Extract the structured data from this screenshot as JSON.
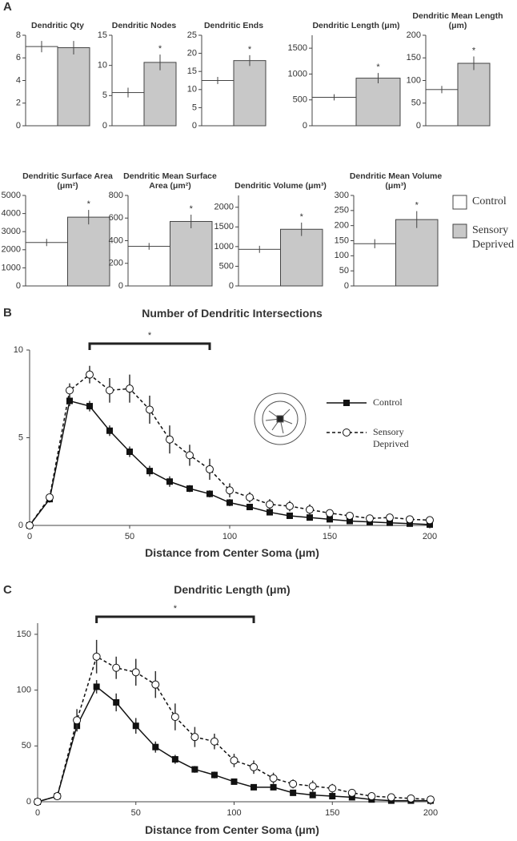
{
  "panel_labels": [
    "A",
    "B",
    "C"
  ],
  "panel_a_legend": [
    {
      "name": "Control",
      "color": "#ffffff"
    },
    {
      "name": "Sensory Deprived",
      "color": "#c8c8c8"
    }
  ],
  "chart_data": [
    {
      "type": "bar",
      "title": "Dendritic Qty",
      "values": [
        7.0,
        6.9
      ],
      "errors": [
        0.5,
        0.6
      ],
      "colors": [
        "#ffffff",
        "#c8c8c8"
      ],
      "ylim": [
        0,
        8
      ],
      "yticks": [
        0,
        2,
        4,
        6,
        8
      ]
    },
    {
      "type": "bar",
      "title": "Dendritic Nodes",
      "values": [
        5.5,
        10.5
      ],
      "errors": [
        0.8,
        1.3
      ],
      "colors": [
        "#ffffff",
        "#c8c8c8"
      ],
      "ylim": [
        0,
        15
      ],
      "yticks": [
        0,
        5,
        10,
        15
      ],
      "annotation": "*"
    },
    {
      "type": "bar",
      "title": "Dendritic Ends",
      "values": [
        12.5,
        18
      ],
      "errors": [
        1,
        1.5
      ],
      "colors": [
        "#ffffff",
        "#c8c8c8"
      ],
      "ylim": [
        0,
        25
      ],
      "yticks": [
        0,
        5,
        10,
        15,
        20,
        25
      ],
      "annotation": "*"
    },
    {
      "type": "bar",
      "title": "Dendritic Length (μm)",
      "values": [
        550,
        920
      ],
      "errors": [
        60,
        100
      ],
      "colors": [
        "#ffffff",
        "#c8c8c8"
      ],
      "ylim": [
        0,
        1750
      ],
      "yticks": [
        0,
        500,
        1000,
        1500
      ],
      "annotation": "*"
    },
    {
      "type": "bar",
      "title": "Dendritic Mean Length (μm)",
      "values": [
        80,
        138
      ],
      "errors": [
        8,
        15
      ],
      "colors": [
        "#ffffff",
        "#c8c8c8"
      ],
      "ylim": [
        0,
        200
      ],
      "yticks": [
        0,
        50,
        100,
        150,
        200
      ],
      "annotation": "*"
    },
    {
      "type": "bar",
      "title": "Dendritic Surface Area (μm²)",
      "values": [
        2400,
        3800
      ],
      "errors": [
        200,
        400
      ],
      "colors": [
        "#ffffff",
        "#c8c8c8"
      ],
      "ylim": [
        0,
        5000
      ],
      "yticks": [
        0,
        1000,
        2000,
        3000,
        4000,
        5000
      ],
      "annotation": "*"
    },
    {
      "type": "bar",
      "title": "Dendritic Mean Surface Area (μm²)",
      "values": [
        350,
        570
      ],
      "errors": [
        30,
        60
      ],
      "colors": [
        "#ffffff",
        "#c8c8c8"
      ],
      "ylim": [
        0,
        800
      ],
      "yticks": [
        0,
        200,
        400,
        600,
        800
      ],
      "annotation": "*"
    },
    {
      "type": "bar",
      "title": "Dendritic Volume (μm³)",
      "values": [
        930,
        1440
      ],
      "errors": [
        90,
        170
      ],
      "colors": [
        "#ffffff",
        "#c8c8c8"
      ],
      "ylim": [
        0,
        2300
      ],
      "yticks": [
        0,
        500,
        1000,
        1500,
        2000
      ],
      "annotation": "*"
    },
    {
      "type": "bar",
      "title": "Dendritic Mean Volume (μm³)",
      "values": [
        140,
        220
      ],
      "errors": [
        15,
        28
      ],
      "colors": [
        "#ffffff",
        "#c8c8c8"
      ],
      "ylim": [
        0,
        300
      ],
      "yticks": [
        0,
        50,
        100,
        150,
        200,
        250,
        300
      ],
      "annotation": "*"
    },
    {
      "type": "line",
      "title": "Number of Dendritic Intersections",
      "x_label": "Distance from Center Soma (μm)",
      "x": [
        0,
        10,
        20,
        30,
        40,
        50,
        60,
        70,
        80,
        90,
        100,
        110,
        120,
        130,
        140,
        150,
        160,
        170,
        180,
        190,
        200
      ],
      "series": [
        {
          "name": "Control",
          "color": "#111111",
          "marker": "square",
          "linestyle": "solid",
          "values": [
            0,
            1.5,
            7.1,
            6.8,
            5.4,
            4.2,
            3.1,
            2.5,
            2.1,
            1.8,
            1.3,
            1.05,
            0.75,
            0.55,
            0.45,
            0.35,
            0.25,
            0.2,
            0.15,
            0.1,
            0.05
          ],
          "errors": [
            0,
            0.2,
            0.3,
            0.3,
            0.3,
            0.3,
            0.3,
            0.3,
            0.2,
            0.2,
            0.2,
            0.15,
            0.1,
            0.1,
            0.1,
            0.1,
            0.1,
            0.1,
            0.1,
            0.1,
            0.1
          ]
        },
        {
          "name": "Sensory Deprived",
          "color": "#111111",
          "marker": "circle",
          "linestyle": "dashed",
          "values": [
            0,
            1.6,
            7.7,
            8.6,
            7.7,
            7.8,
            6.6,
            4.9,
            4.0,
            3.2,
            2.0,
            1.6,
            1.2,
            1.1,
            0.9,
            0.7,
            0.55,
            0.4,
            0.45,
            0.35,
            0.3
          ],
          "errors": [
            0,
            0.2,
            0.4,
            0.5,
            0.7,
            0.8,
            0.8,
            0.8,
            0.6,
            0.6,
            0.4,
            0.3,
            0.3,
            0.3,
            0.3,
            0.2,
            0.2,
            0.2,
            0.2,
            0.2,
            0.15
          ]
        }
      ],
      "xlim": [
        0,
        200
      ],
      "xticks": [
        0,
        50,
        100,
        150,
        200
      ],
      "ylim": [
        0,
        10
      ],
      "yticks": [
        0,
        5,
        10
      ],
      "bracket": {
        "x": [
          30,
          90
        ],
        "label": "*"
      }
    },
    {
      "type": "line",
      "title": "Dendritic Length (μm)",
      "x_label": "Distance from Center Soma (μm)",
      "x": [
        0,
        10,
        20,
        30,
        40,
        50,
        60,
        70,
        80,
        90,
        100,
        110,
        120,
        130,
        140,
        150,
        160,
        170,
        180,
        190,
        200
      ],
      "series": [
        {
          "color": "#111111",
          "marker": "square",
          "linestyle": "solid",
          "values": [
            0,
            5,
            68,
            103,
            89,
            68,
            49,
            38,
            29,
            24,
            18,
            13,
            13,
            8,
            6,
            5,
            4,
            2,
            1,
            1,
            1
          ],
          "errors": [
            0,
            1,
            5,
            6,
            8,
            7,
            5,
            4,
            3,
            3,
            2,
            2,
            2,
            2,
            2,
            1,
            1,
            1,
            1,
            1,
            1
          ]
        },
        {
          "color": "#111111",
          "marker": "circle",
          "linestyle": "dashed",
          "values": [
            0,
            5,
            73,
            130,
            120,
            116,
            105,
            76,
            58,
            54,
            37,
            31,
            21,
            16,
            14,
            12,
            8,
            5,
            4,
            3,
            2
          ],
          "errors": [
            0,
            1,
            10,
            15,
            10,
            12,
            12,
            12,
            9,
            7,
            6,
            6,
            5,
            4,
            5,
            4,
            3,
            2,
            2,
            2,
            2
          ]
        }
      ],
      "xlim": [
        0,
        200
      ],
      "xticks": [
        0,
        50,
        100,
        150,
        200
      ],
      "ylim": [
        0,
        160
      ],
      "yticks": [
        0,
        50,
        100,
        150
      ],
      "bracket": {
        "x": [
          30,
          110
        ],
        "label": "*"
      }
    }
  ]
}
